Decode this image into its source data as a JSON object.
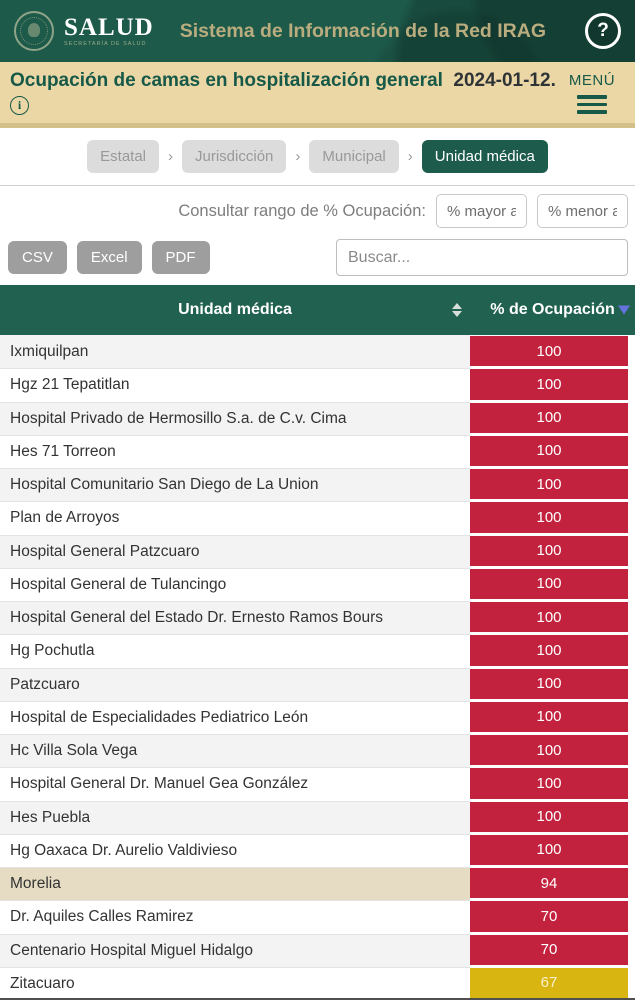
{
  "header": {
    "brand": "SALUD",
    "brand_sub": "SECRETARÍA DE SALUD",
    "title": "Sistema de Información de la Red IRAG",
    "help_glyph": "?"
  },
  "subheader": {
    "title": "Ocupación de camas en hospitalización general",
    "date": "2024-01-12.",
    "info_glyph": "i",
    "menu_label": "MENÚ"
  },
  "breadcrumbs": {
    "separator": "›",
    "items": [
      {
        "label": "Estatal",
        "active": false
      },
      {
        "label": "Jurisdicción",
        "active": false
      },
      {
        "label": "Municipal",
        "active": false
      },
      {
        "label": "Unidad médica",
        "active": true
      }
    ]
  },
  "range_filter": {
    "label": "Consultar rango de % Ocupación:",
    "min_placeholder": "% mayor a",
    "max_placeholder": "% menor a"
  },
  "toolbar": {
    "export_buttons": [
      "CSV",
      "Excel",
      "PDF"
    ],
    "search_placeholder": "Buscar..."
  },
  "table": {
    "columns": [
      {
        "label": "Unidad médica",
        "sort": "both"
      },
      {
        "label": "% de Ocupación",
        "sort": "desc"
      }
    ],
    "rows": [
      {
        "name": "Ixmiquilpan",
        "value": "100",
        "level": "red",
        "highlighted": false
      },
      {
        "name": "Hgz 21 Tepatitlan",
        "value": "100",
        "level": "red",
        "highlighted": false
      },
      {
        "name": "Hospital Privado de Hermosillo S.a. de C.v. Cima",
        "value": "100",
        "level": "red",
        "highlighted": false
      },
      {
        "name": "Hes 71 Torreon",
        "value": "100",
        "level": "red",
        "highlighted": false
      },
      {
        "name": "Hospital Comunitario San Diego de La Union",
        "value": "100",
        "level": "red",
        "highlighted": false
      },
      {
        "name": "Plan de Arroyos",
        "value": "100",
        "level": "red",
        "highlighted": false
      },
      {
        "name": "Hospital General Patzcuaro",
        "value": "100",
        "level": "red",
        "highlighted": false
      },
      {
        "name": "Hospital General de Tulancingo",
        "value": "100",
        "level": "red",
        "highlighted": false
      },
      {
        "name": "Hospital General del Estado Dr. Ernesto Ramos Bours",
        "value": "100",
        "level": "red",
        "highlighted": false
      },
      {
        "name": "Hg Pochutla",
        "value": "100",
        "level": "red",
        "highlighted": false
      },
      {
        "name": "Patzcuaro",
        "value": "100",
        "level": "red",
        "highlighted": false
      },
      {
        "name": "Hospital de Especialidades Pediatrico León",
        "value": "100",
        "level": "red",
        "highlighted": false
      },
      {
        "name": "Hc Villa Sola Vega",
        "value": "100",
        "level": "red",
        "highlighted": false
      },
      {
        "name": "Hospital General Dr. Manuel Gea González",
        "value": "100",
        "level": "red",
        "highlighted": false
      },
      {
        "name": "Hes Puebla",
        "value": "100",
        "level": "red",
        "highlighted": false
      },
      {
        "name": "Hg Oaxaca Dr. Aurelio Valdivieso",
        "value": "100",
        "level": "red",
        "highlighted": false
      },
      {
        "name": "Morelia",
        "value": "94",
        "level": "red",
        "highlighted": true
      },
      {
        "name": "Dr. Aquiles Calles Ramirez",
        "value": "70",
        "level": "red",
        "highlighted": false
      },
      {
        "name": "Centenario Hospital Miguel Hidalgo",
        "value": "70",
        "level": "red",
        "highlighted": false
      },
      {
        "name": "Zitacuaro",
        "value": "67",
        "level": "yellow",
        "highlighted": false
      }
    ]
  },
  "colors": {
    "header_green": "#1d5a4a",
    "table_header_green": "#20614f",
    "subheader_beige": "#ead7a5",
    "accent_red": "#c2223e",
    "accent_yellow": "#d9b512",
    "highlight_row": "#e5dcc3"
  }
}
